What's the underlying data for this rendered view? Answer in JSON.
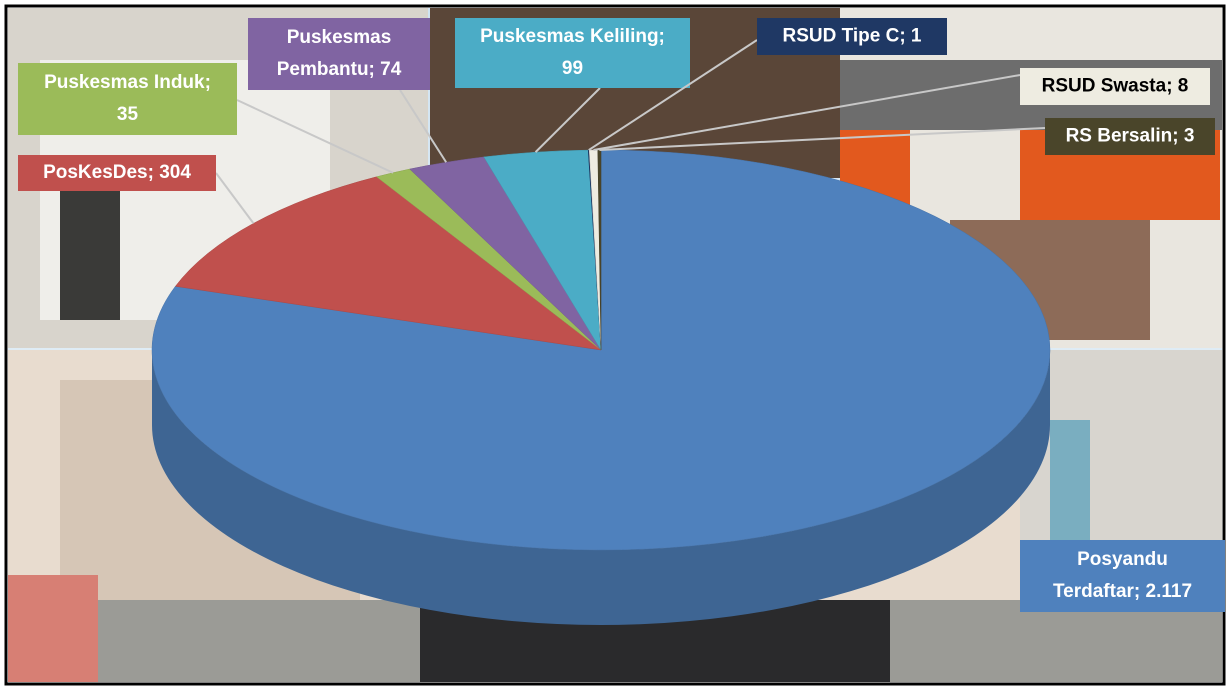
{
  "chart_data": {
    "type": "pie",
    "values": [
      2117,
      304,
      35,
      74,
      99,
      1,
      8,
      3
    ],
    "value_labels": [
      [
        "Posyandu",
        "Terdaftar;  2.117"
      ],
      [
        "PosKesDes;  304"
      ],
      [
        "Puskesmas Induk;",
        "35"
      ],
      [
        "Puskesmas",
        "Pembantu;  74"
      ],
      [
        "Puskesmas Keliling;",
        "99"
      ],
      [
        "RSUD Tipe C;  1"
      ],
      [
        "RSUD Swasta; 8"
      ],
      [
        "RS Bersalin; 3"
      ]
    ],
    "colors": [
      "#4f81bd",
      "#c0504d",
      "#9bbb59",
      "#8064a2",
      "#4bacc6",
      "#1f3864",
      "#eeece1",
      "#4a452a"
    ],
    "label_text_colors": [
      "#ffffff",
      "#ffffff",
      "#ffffff",
      "#ffffff",
      "#ffffff",
      "#ffffff",
      "#000000",
      "#ffffff"
    ]
  }
}
